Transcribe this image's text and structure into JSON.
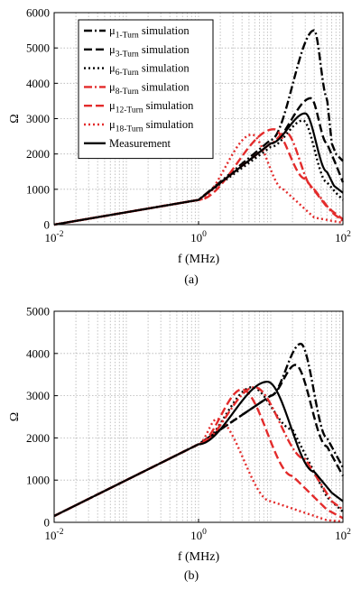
{
  "chart_data": [
    {
      "type": "line",
      "caption": "(a)",
      "xlabel": "f (MHz)",
      "ylabel": "Ω",
      "xscale": "log",
      "xlim": [
        0.01,
        100
      ],
      "ylim": [
        0,
        6000
      ],
      "xticks": [
        {
          "value": 0.01,
          "base": "10",
          "exp": "-2"
        },
        {
          "value": 1,
          "base": "10",
          "exp": "0"
        },
        {
          "value": 100,
          "base": "10",
          "exp": "2"
        }
      ],
      "yticks": [
        "0",
        "1000",
        "2000",
        "3000",
        "4000",
        "5000",
        "6000"
      ],
      "grid": true,
      "legend_position": "top-left",
      "series": [
        {
          "name": "μ1-Turn simulation",
          "label_main": "μ",
          "label_sub": "1-Turn",
          "label_rest": " simulation",
          "color": "#000000",
          "dash": "dashdot",
          "peak_f": 40,
          "peak": 5500,
          "x": [
            0.01,
            1,
            10,
            40,
            60,
            70,
            80,
            100
          ],
          "y": [
            0,
            700,
            2400,
            5500,
            3600,
            2300,
            2000,
            1800
          ]
        },
        {
          "name": "μ3-Turn simulation",
          "label_main": "μ",
          "label_sub": "3-Turn",
          "label_rest": " simulation",
          "color": "#000000",
          "dash": "dash",
          "peak_f": 36,
          "peak": 3580,
          "x": [
            0.01,
            1,
            10,
            36,
            60,
            80,
            100
          ],
          "y": [
            0,
            700,
            2300,
            3580,
            2300,
            1700,
            1200
          ]
        },
        {
          "name": "μ6-Turn simulation",
          "label_main": "μ",
          "label_sub": "6-Turn",
          "label_rest": " simulation",
          "color": "#000000",
          "dash": "dot",
          "peak_f": 28,
          "peak": 2950,
          "x": [
            0.01,
            1,
            10,
            28,
            60,
            80,
            100
          ],
          "y": [
            0,
            700,
            2200,
            2950,
            1200,
            900,
            700
          ]
        },
        {
          "name": "μ8-Turn simulation",
          "label_main": "μ",
          "label_sub": "8-Turn",
          "label_rest": " simulation",
          "color": "#e32b2b",
          "dash": "dashdot",
          "peak_f": 16,
          "peak": 2620,
          "x": [
            0.01,
            1,
            10,
            16,
            40,
            70,
            100
          ],
          "y": [
            0,
            700,
            2300,
            2620,
            1000,
            350,
            100
          ]
        },
        {
          "name": "μ12-Turn simulation",
          "label_main": "μ",
          "label_sub": "12-Turn",
          "label_rest": " simulation",
          "color": "#e32b2b",
          "dash": "dash",
          "peak_f": 11,
          "peak": 2700,
          "x": [
            0.01,
            1,
            11,
            30,
            60,
            100
          ],
          "y": [
            0,
            700,
            2700,
            1300,
            500,
            150
          ]
        },
        {
          "name": "μ18-Turn simulation",
          "label_main": "μ",
          "label_sub": "18-Turn",
          "label_rest": " simulation",
          "color": "#e32b2b",
          "dash": "dot",
          "peak_f": 5.5,
          "peak": 2550,
          "x": [
            0.01,
            1,
            5.5,
            15,
            40,
            100
          ],
          "y": [
            0,
            700,
            2550,
            1000,
            200,
            50
          ]
        },
        {
          "name": "Measurement",
          "label_main": "Measurement",
          "label_sub": "",
          "label_rest": "",
          "color": "#000000",
          "dash": "solid",
          "peak_f": 30,
          "peak": 3150,
          "x": [
            0.01,
            1,
            10,
            30,
            60,
            75,
            100
          ],
          "y": [
            0,
            700,
            2300,
            3150,
            1500,
            1100,
            900
          ]
        }
      ]
    },
    {
      "type": "line",
      "caption": "(b)",
      "xlabel": "f (MHz)",
      "ylabel": "Ω",
      "xscale": "log",
      "xlim": [
        0.01,
        100
      ],
      "ylim": [
        0,
        5000
      ],
      "xticks": [
        {
          "value": 0.01,
          "base": "10",
          "exp": "-2"
        },
        {
          "value": 1,
          "base": "10",
          "exp": "0"
        },
        {
          "value": 100,
          "base": "10",
          "exp": "2"
        }
      ],
      "yticks": [
        "0",
        "1000",
        "2000",
        "3000",
        "4000",
        "5000"
      ],
      "grid": true,
      "series": [
        {
          "name": "μ1-Turn simulation",
          "color": "#000000",
          "dash": "dashdot",
          "peak_f": 26,
          "peak": 4230,
          "x": [
            0.01,
            1,
            10,
            26,
            60,
            100
          ],
          "y": [
            150,
            1850,
            3000,
            4230,
            2000,
            1300
          ]
        },
        {
          "name": "μ3-Turn simulation",
          "color": "#000000",
          "dash": "dash",
          "peak_f": 22,
          "peak": 3730,
          "x": [
            0.01,
            1,
            10,
            22,
            60,
            100
          ],
          "y": [
            150,
            1850,
            3000,
            3730,
            1800,
            1100
          ]
        },
        {
          "name": "μ6-Turn simulation",
          "color": "#000000",
          "dash": "dot",
          "peak_f": 5.5,
          "peak": 3200,
          "x": [
            0.01,
            1,
            5.5,
            20,
            60,
            100
          ],
          "y": [
            150,
            1850,
            3200,
            2200,
            600,
            250
          ]
        },
        {
          "name": "μ8-Turn simulation",
          "color": "#e32b2b",
          "dash": "dashdot",
          "peak_f": 6,
          "peak": 3200,
          "x": [
            0.01,
            1,
            6,
            30,
            70,
            100
          ],
          "y": [
            150,
            1850,
            3200,
            1500,
            500,
            300
          ]
        },
        {
          "name": "μ12-Turn simulation",
          "color": "#e32b2b",
          "dash": "dash",
          "peak_f": 4,
          "peak": 3150,
          "x": [
            0.01,
            1,
            4,
            20,
            60,
            100
          ],
          "y": [
            150,
            1850,
            3150,
            1100,
            300,
            100
          ]
        },
        {
          "name": "μ18-Turn simulation",
          "color": "#e32b2b",
          "dash": "dot",
          "peak_f": 1.8,
          "peak": 2450,
          "x": [
            0.01,
            1,
            1.8,
            10,
            60,
            100
          ],
          "y": [
            150,
            1850,
            2450,
            500,
            50,
            20
          ]
        },
        {
          "name": "Measurement",
          "color": "#000000",
          "dash": "solid",
          "peak_f": 9,
          "peak": 3330,
          "x": [
            0.01,
            1,
            9,
            40,
            70,
            100
          ],
          "y": [
            150,
            1850,
            3330,
            1200,
            700,
            500
          ]
        }
      ]
    }
  ]
}
